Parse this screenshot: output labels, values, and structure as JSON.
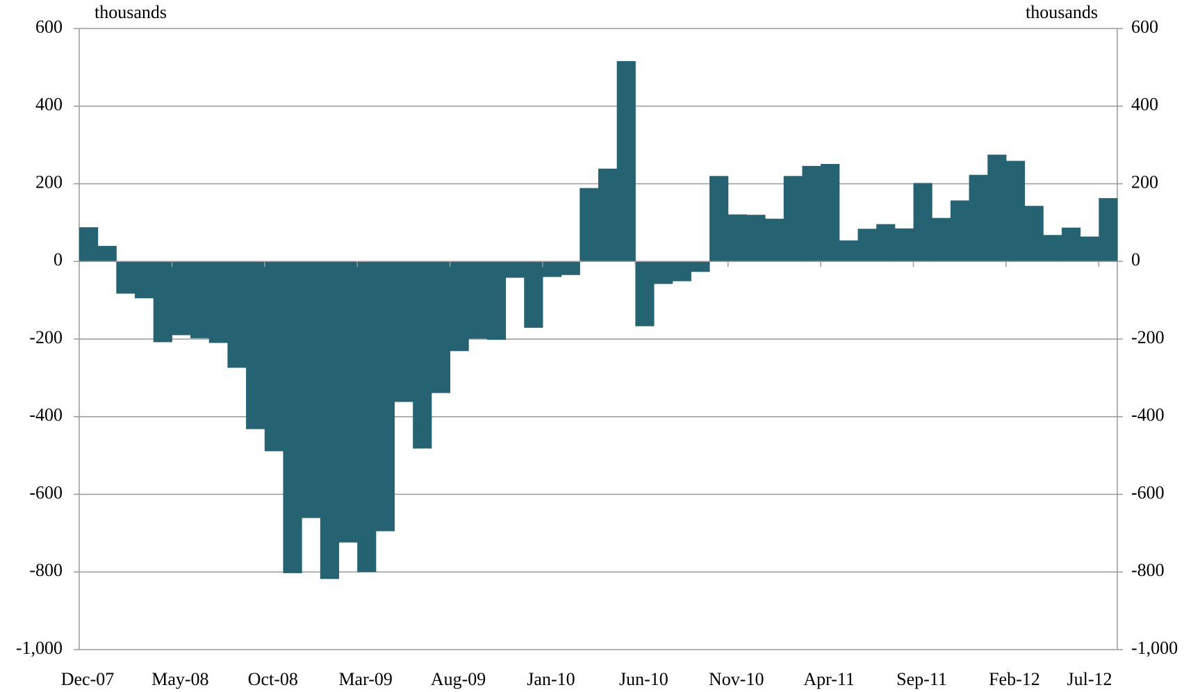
{
  "chart_data": {
    "type": "bar",
    "y_label": "thousands",
    "y2_label": "thousands",
    "categories": [
      "Dec-07",
      null,
      null,
      null,
      null,
      "May-08",
      null,
      null,
      null,
      null,
      "Oct-08",
      null,
      null,
      null,
      null,
      "Mar-09",
      null,
      null,
      null,
      null,
      "Aug-09",
      null,
      null,
      null,
      null,
      "Jan-10",
      null,
      null,
      null,
      null,
      "Jun-10",
      null,
      null,
      null,
      null,
      "Nov-10",
      null,
      null,
      null,
      null,
      "Apr-11",
      null,
      null,
      null,
      null,
      "Sep-11",
      null,
      null,
      null,
      null,
      "Feb-12",
      null,
      null,
      null,
      null,
      "Jul-12"
    ],
    "values": [
      88,
      40,
      -83,
      -95,
      -208,
      -190,
      -198,
      -210,
      -274,
      -432,
      -489,
      -803,
      -661,
      -818,
      -724,
      -800,
      -695,
      -362,
      -482,
      -339,
      -231,
      -199,
      -202,
      -42,
      -171,
      -40,
      -35,
      189,
      239,
      516,
      -167,
      -58,
      -51,
      -27,
      220,
      121,
      120,
      110,
      220,
      246,
      251,
      54,
      84,
      96,
      85,
      202,
      112,
      157,
      223,
      275,
      259,
      143,
      68,
      87,
      64,
      163
    ],
    "color": "#256272",
    "ylim": [
      -1000,
      600
    ],
    "yticks": [
      {
        "value": -1000,
        "label": "-1,000"
      },
      -800,
      -600,
      -400,
      -200,
      0,
      200,
      400,
      600
    ],
    "y2lim": [
      -1000,
      600
    ],
    "y2ticks": [
      {
        "value": -1000,
        "label": "-1,000"
      },
      -800,
      -600,
      -400,
      -200,
      0,
      200,
      400,
      600
    ],
    "grid": true
  }
}
